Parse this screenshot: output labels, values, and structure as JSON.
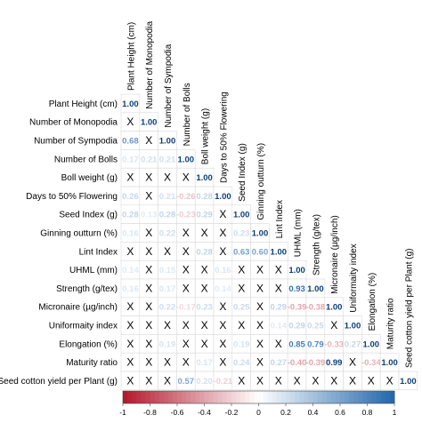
{
  "chart_data": {
    "type": "heatmap",
    "variables": [
      "Plant Height (cm)",
      "Number of Monopodia",
      "Number of Sympodia",
      "Number of Bolls",
      "Boll weight (g)",
      "Days to 50% Flowering",
      "Seed Index (g)",
      "Ginning outturn (%)",
      "Lint Index",
      "UHML (mm)",
      "Strength (g/tex)",
      "Micronaire (µg/inch)",
      "Uniformaity index",
      "Elongation (%)",
      "Maturity ratio",
      "Seed cotton yield per Plant (g)"
    ],
    "matrix": [
      [
        "1.00"
      ],
      [
        "X",
        "1.00"
      ],
      [
        "0.68",
        "X",
        "1.00"
      ],
      [
        "0.17",
        "0.21",
        "0.21",
        "1.00"
      ],
      [
        "X",
        "X",
        "X",
        "X",
        "1.00"
      ],
      [
        "0.26",
        "X",
        "0.21",
        "-0.26",
        "0.28",
        "1.00"
      ],
      [
        "0.28",
        "0.13",
        "0.28",
        "-0.23",
        "0.29",
        "X",
        "1.00"
      ],
      [
        "0.16",
        "X",
        "0.22",
        "X",
        "X",
        "X",
        "0.23",
        "1.00"
      ],
      [
        "X",
        "X",
        "X",
        "X",
        "0.28",
        "X",
        "0.63",
        "0.60",
        "1.00"
      ],
      [
        "0.14",
        "X",
        "0.15",
        "X",
        "X",
        "0.16",
        "X",
        "X",
        "X",
        "1.00"
      ],
      [
        "0.16",
        "X",
        "0.17",
        "X",
        "X",
        "0.14",
        "X",
        "X",
        "X",
        "0.93",
        "1.00"
      ],
      [
        "X",
        "X",
        "0.22",
        "-0.17",
        "0.23",
        "X",
        "0.25",
        "X",
        "0.29",
        "-0.39",
        "-0.38",
        "1.00"
      ],
      [
        "X",
        "X",
        "X",
        "X",
        "X",
        "X",
        "X",
        "X",
        "0.14",
        "0.29",
        "0.25",
        "X",
        "1.00"
      ],
      [
        "X",
        "X",
        "0.19",
        "X",
        "X",
        "X",
        "0.19",
        "X",
        "X",
        "0.85",
        "0.79",
        "-0.33",
        "0.27",
        "1.00"
      ],
      [
        "X",
        "X",
        "X",
        "X",
        "0.17",
        "X",
        "0.24",
        "X",
        "0.27",
        "-0.40",
        "-0.39",
        "0.99",
        "X",
        "-0.34",
        "1.00"
      ],
      [
        "X",
        "X",
        "X",
        "0.57",
        "0.20",
        "-0.21",
        "X",
        "X",
        "X",
        "X",
        "X",
        "X",
        "X",
        "X",
        "X",
        "1.00"
      ]
    ],
    "colorbar": {
      "range": [
        -1,
        1
      ],
      "ticks": [
        "-1",
        "-0.8",
        "-0.6",
        "-0.4",
        "-0.2",
        "0",
        "0.2",
        "0.4",
        "0.6",
        "0.8",
        "1"
      ]
    },
    "colors": {
      "negative": "#b2182b",
      "neutral": "#ffffff",
      "positive": "#2166ac",
      "text_strong_positive": "#0b3f7a"
    }
  }
}
